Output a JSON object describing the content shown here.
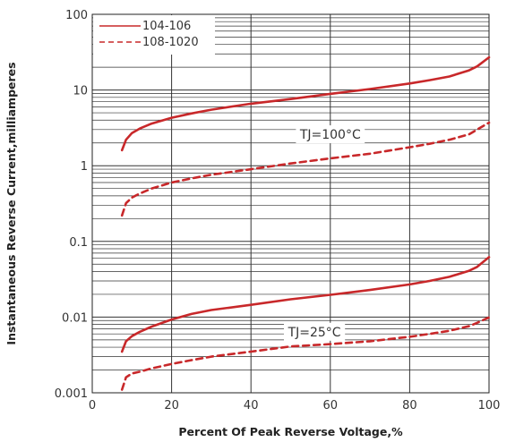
{
  "chart_data": {
    "type": "line",
    "title": "",
    "xlabel": "Percent Of Peak Reverse Voltage,%",
    "ylabel": "Instantaneous Reverse Current,milliamperes",
    "xlim": [
      0,
      100
    ],
    "ylim": [
      0.001,
      100
    ],
    "yscale": "log",
    "grid": true,
    "legend_position": "top-left",
    "x_ticks": [
      "0",
      "20",
      "40",
      "60",
      "80",
      "100"
    ],
    "y_ticks": [
      "0.001",
      "0.01",
      "0.1",
      "1",
      "10",
      "100"
    ],
    "line_color": "#c8282a",
    "legend": [
      {
        "label": "104-106",
        "style": "solid"
      },
      {
        "label": "108-1020",
        "style": "dashed"
      }
    ],
    "annotations": [
      {
        "text": "TJ=100°C",
        "x": 60,
        "y": 2.6
      },
      {
        "text": "TJ=25°C",
        "x": 56,
        "y": 0.0064
      }
    ],
    "series": [
      {
        "group": "TJ=100°C",
        "style": "solid",
        "x": [
          7.5,
          8.5,
          10,
          12,
          15,
          20,
          25,
          30,
          40,
          50,
          60,
          70,
          80,
          85,
          90,
          95,
          97,
          100
        ],
        "y": [
          1.6,
          2.2,
          2.7,
          3.1,
          3.6,
          4.3,
          4.9,
          5.5,
          6.6,
          7.6,
          8.9,
          10.3,
          12.2,
          13.5,
          15.1,
          18.2,
          20.5,
          27
        ]
      },
      {
        "group": "TJ=100°C",
        "style": "dashed",
        "x": [
          7.5,
          8.5,
          10,
          12,
          15,
          20,
          25,
          30,
          40,
          50,
          60,
          70,
          80,
          85,
          90,
          95,
          97,
          100
        ],
        "y": [
          0.22,
          0.32,
          0.38,
          0.43,
          0.5,
          0.6,
          0.68,
          0.76,
          0.9,
          1.07,
          1.25,
          1.44,
          1.75,
          1.95,
          2.2,
          2.6,
          3.0,
          3.7
        ]
      },
      {
        "group": "TJ=25°C",
        "style": "solid",
        "x": [
          7.5,
          8.5,
          10,
          12,
          15,
          20,
          25,
          30,
          40,
          50,
          60,
          70,
          80,
          85,
          90,
          95,
          97,
          100
        ],
        "y": [
          0.0035,
          0.0048,
          0.0056,
          0.0064,
          0.0075,
          0.0093,
          0.011,
          0.0124,
          0.0145,
          0.0172,
          0.0197,
          0.0228,
          0.027,
          0.03,
          0.034,
          0.041,
          0.046,
          0.062
        ]
      },
      {
        "group": "TJ=25°C",
        "style": "dashed",
        "x": [
          7.5,
          8.5,
          10,
          12,
          15,
          20,
          25,
          30,
          40,
          50,
          60,
          70,
          80,
          85,
          90,
          95,
          97,
          100
        ],
        "y": [
          0.0011,
          0.0016,
          0.0018,
          0.0019,
          0.0021,
          0.0024,
          0.0027,
          0.003,
          0.0035,
          0.0041,
          0.0044,
          0.0048,
          0.0055,
          0.006,
          0.0066,
          0.0076,
          0.0084,
          0.0099
        ]
      }
    ]
  }
}
